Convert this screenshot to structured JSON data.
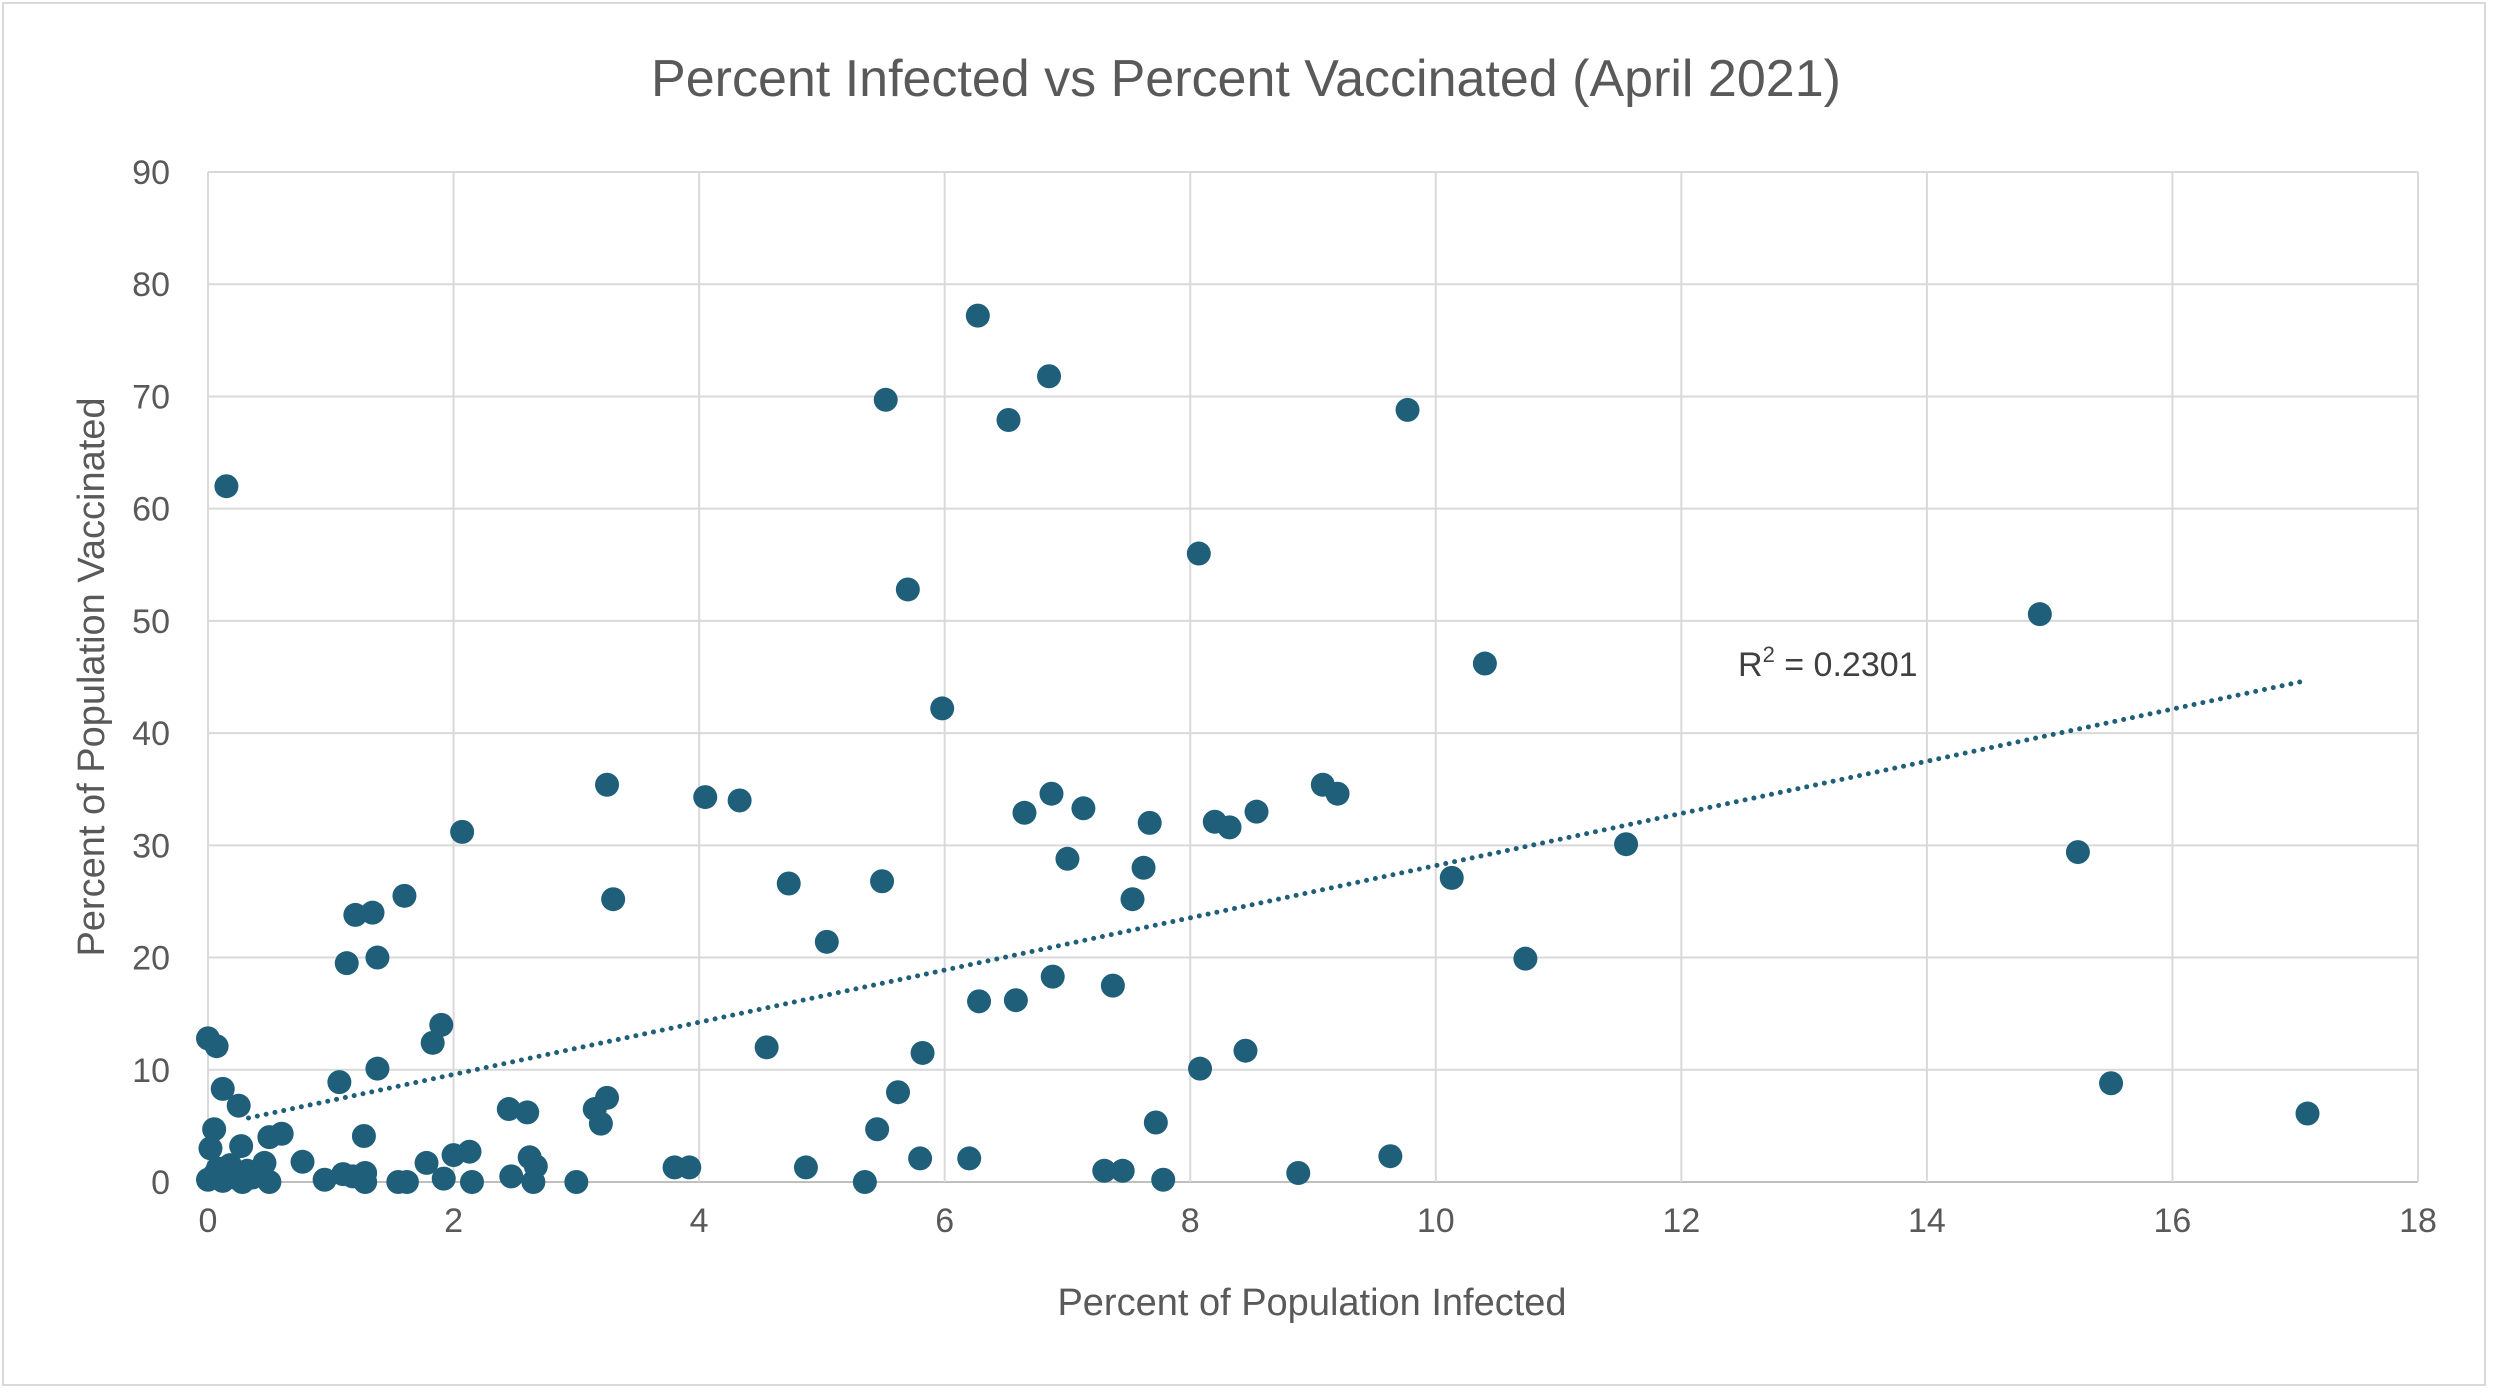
{
  "chart_data": {
    "type": "scatter",
    "title": "Percent Infected vs Percent Vaccinated (April 2021)",
    "xlabel": "Percent of Population Infected",
    "ylabel": "Percent of Population Vaccinated",
    "xlim": [
      0,
      18
    ],
    "ylim": [
      0,
      90
    ],
    "x_ticks": [
      "0",
      "2",
      "4",
      "6",
      "8",
      "10",
      "12",
      "14",
      "16",
      "18"
    ],
    "y_ticks": [
      "0",
      "10",
      "20",
      "30",
      "40",
      "50",
      "60",
      "70",
      "80",
      "90"
    ],
    "grid": true,
    "marker_color": "#1f5f7a",
    "trendline": {
      "style": "dotted linear",
      "color": "#1f5f7a",
      "x_start": 0.33,
      "y_start": 5.7,
      "x_end": 17.1,
      "y_end": 44.7,
      "r2_label": "R",
      "r2_sup": "2",
      "r2_value": " = 0.2301"
    },
    "points": [
      [
        0.0,
        12.8
      ],
      [
        0.07,
        12.1
      ],
      [
        0.02,
        3.0
      ],
      [
        0.05,
        4.7
      ],
      [
        0.12,
        8.3
      ],
      [
        0.15,
        62.0
      ],
      [
        0.0,
        0.2
      ],
      [
        0.05,
        0.6
      ],
      [
        0.08,
        1.2
      ],
      [
        0.12,
        0.1
      ],
      [
        0.18,
        1.5
      ],
      [
        0.22,
        0.4
      ],
      [
        0.25,
        6.8
      ],
      [
        0.27,
        3.2
      ],
      [
        0.28,
        0.0
      ],
      [
        0.32,
        1.0
      ],
      [
        0.36,
        0.4
      ],
      [
        0.4,
        0.8
      ],
      [
        0.46,
        1.7
      ],
      [
        0.5,
        4.0
      ],
      [
        0.5,
        0.0
      ],
      [
        0.6,
        4.3
      ],
      [
        0.77,
        1.8
      ],
      [
        0.95,
        0.2
      ],
      [
        1.07,
        8.9
      ],
      [
        1.1,
        0.7
      ],
      [
        1.13,
        19.5
      ],
      [
        1.18,
        0.5
      ],
      [
        1.2,
        23.8
      ],
      [
        1.27,
        4.1
      ],
      [
        1.28,
        0.8
      ],
      [
        1.28,
        0.0
      ],
      [
        1.34,
        24.0
      ],
      [
        1.38,
        20.0
      ],
      [
        1.38,
        10.1
      ],
      [
        1.55,
        0.0
      ],
      [
        1.6,
        25.5
      ],
      [
        1.62,
        0.0
      ],
      [
        1.78,
        1.7
      ],
      [
        1.83,
        12.4
      ],
      [
        1.9,
        14.0
      ],
      [
        1.92,
        0.3
      ],
      [
        2.0,
        2.4
      ],
      [
        2.07,
        31.2
      ],
      [
        2.13,
        2.7
      ],
      [
        2.15,
        0.0
      ],
      [
        2.45,
        6.5
      ],
      [
        2.47,
        0.5
      ],
      [
        2.6,
        6.2
      ],
      [
        2.62,
        2.2
      ],
      [
        2.65,
        0.0
      ],
      [
        2.67,
        1.4
      ],
      [
        3.0,
        0.0
      ],
      [
        3.15,
        6.5
      ],
      [
        3.2,
        5.2
      ],
      [
        3.25,
        35.4
      ],
      [
        3.25,
        7.5
      ],
      [
        3.3,
        25.2
      ],
      [
        3.8,
        1.3
      ],
      [
        3.92,
        1.3
      ],
      [
        4.05,
        34.3
      ],
      [
        4.33,
        34.0
      ],
      [
        4.55,
        12.0
      ],
      [
        4.73,
        26.6
      ],
      [
        4.87,
        1.3
      ],
      [
        5.04,
        21.4
      ],
      [
        5.35,
        0.0
      ],
      [
        5.45,
        4.7
      ],
      [
        5.49,
        26.8
      ],
      [
        5.52,
        69.7
      ],
      [
        5.62,
        8.0
      ],
      [
        5.7,
        52.8
      ],
      [
        5.8,
        2.1
      ],
      [
        5.82,
        11.5
      ],
      [
        5.98,
        42.2
      ],
      [
        6.2,
        2.1
      ],
      [
        6.27,
        77.2
      ],
      [
        6.28,
        16.1
      ],
      [
        6.52,
        67.9
      ],
      [
        6.58,
        16.2
      ],
      [
        6.65,
        32.9
      ],
      [
        6.85,
        71.8
      ],
      [
        6.87,
        34.6
      ],
      [
        6.88,
        18.3
      ],
      [
        7.0,
        28.8
      ],
      [
        7.13,
        33.3
      ],
      [
        7.3,
        1.0
      ],
      [
        7.37,
        17.5
      ],
      [
        7.45,
        1.0
      ],
      [
        7.53,
        25.2
      ],
      [
        7.62,
        28.0
      ],
      [
        7.67,
        32.0
      ],
      [
        7.72,
        5.3
      ],
      [
        7.78,
        0.2
      ],
      [
        8.07,
        56.0
      ],
      [
        8.08,
        10.1
      ],
      [
        8.2,
        32.1
      ],
      [
        8.32,
        31.6
      ],
      [
        8.45,
        11.7
      ],
      [
        8.54,
        33.0
      ],
      [
        8.88,
        0.8
      ],
      [
        9.08,
        35.4
      ],
      [
        9.2,
        34.6
      ],
      [
        9.63,
        2.3
      ],
      [
        9.77,
        68.8
      ],
      [
        10.13,
        27.1
      ],
      [
        10.4,
        46.2
      ],
      [
        10.73,
        19.9
      ],
      [
        11.55,
        30.1
      ],
      [
        14.92,
        50.6
      ],
      [
        15.23,
        29.4
      ],
      [
        15.5,
        8.8
      ],
      [
        17.1,
        6.1
      ]
    ]
  }
}
